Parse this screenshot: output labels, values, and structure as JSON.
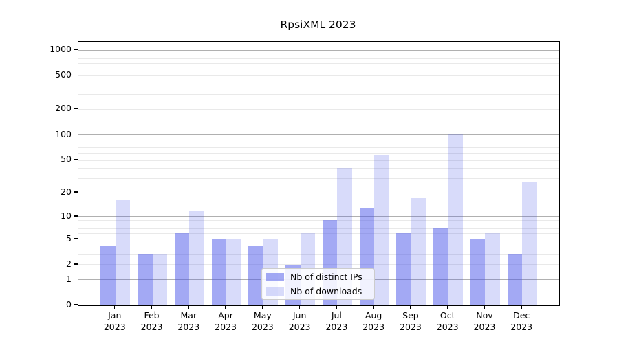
{
  "chart_data": {
    "type": "bar",
    "title": "RpsiXML 2023",
    "categories": [
      "Jan",
      "Feb",
      "Mar",
      "Apr",
      "May",
      "Jun",
      "Jul",
      "Aug",
      "Sep",
      "Oct",
      "Nov",
      "Dec"
    ],
    "category_second_line": "2023",
    "series": [
      {
        "name": "Nb of distinct IPs",
        "color": "rgba(71,83,233,0.50)",
        "values": [
          4,
          3,
          6,
          5,
          4,
          2,
          9,
          13,
          6,
          7,
          5,
          3
        ]
      },
      {
        "name": "Nb of downloads",
        "color": "rgba(71,83,233,0.21)",
        "values": [
          16,
          3,
          12,
          5,
          5,
          6,
          40,
          57,
          17,
          103,
          6,
          27
        ]
      }
    ],
    "y_axis": {
      "scale": "log10(value+1)",
      "tick_values": [
        0,
        1,
        2,
        5,
        10,
        20,
        50,
        100,
        200,
        500,
        1000
      ],
      "tick_labels": [
        "0",
        "1",
        "2",
        "5",
        "10",
        "20",
        "50",
        "100",
        "200",
        "500",
        "1000"
      ],
      "range": [
        0,
        1250
      ],
      "major_gridlines": [
        1,
        10,
        100,
        1000
      ]
    },
    "x_axis": {
      "tick_labels_line1": [
        "Jan",
        "Feb",
        "Mar",
        "Apr",
        "May",
        "Jun",
        "Jul",
        "Aug",
        "Sep",
        "Oct",
        "Nov",
        "Dec"
      ],
      "tick_labels_line2": "2023"
    },
    "legend": {
      "position": "lower center",
      "entries": [
        "Nb of distinct IPs",
        "Nb of downloads"
      ]
    },
    "grid": {
      "major_color": "#b0b0b0",
      "minor_color": "#e9e9e9",
      "minor_pattern": "2-9 per decade"
    },
    "colors": {
      "axis": "#000000",
      "background": "#ffffff",
      "legend_border": "#cccccc"
    }
  }
}
